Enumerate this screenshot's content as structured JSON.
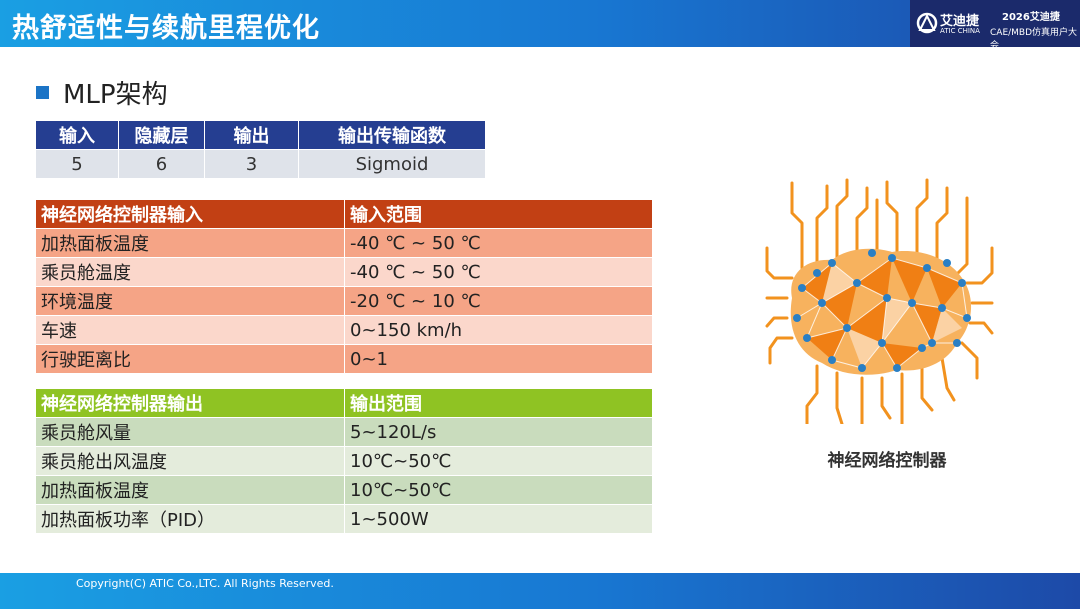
{
  "header": {
    "title": "热舒适性与续航里程优化",
    "logo_cn": "艾迪捷",
    "logo_en": "ATIC CHINA",
    "conf_line1": "2026艾迪捷",
    "conf_line2": "CAE/MBD仿真用户大会"
  },
  "section": {
    "title": "MLP架构"
  },
  "mlp_table": {
    "headers": [
      "输入",
      "隐藏层",
      "输出",
      "输出传输函数"
    ],
    "values": [
      "5",
      "6",
      "3",
      "Sigmoid"
    ]
  },
  "input_table": {
    "headers": [
      "神经网络控制器输入",
      "输入范围"
    ],
    "rows": [
      [
        "加热面板温度",
        "-40 ℃ ~ 50 ℃"
      ],
      [
        "乘员舱温度",
        "-40 ℃ ~ 50 ℃"
      ],
      [
        "环境温度",
        "-20 ℃ ~ 10 ℃"
      ],
      [
        "车速",
        "0~150 km/h"
      ],
      [
        "行驶距离比",
        "0~1"
      ]
    ]
  },
  "output_table": {
    "headers": [
      "神经网络控制器输出",
      "输出范围"
    ],
    "rows": [
      [
        "乘员舱风量",
        "5~120L/s"
      ],
      [
        "乘员舱出风温度",
        "10℃~50℃"
      ],
      [
        "加热面板温度",
        "10℃~50℃"
      ],
      [
        "加热面板功率（PID）",
        "1~500W"
      ]
    ]
  },
  "image": {
    "caption": "神经网络控制器",
    "icon": "neural-network-brain-icon"
  },
  "footer": {
    "copyright": "Copyright(C) ATIC Co.,LTC. All Rights Reserved."
  },
  "colors": {
    "header_blue": "#1877d2",
    "mlp_header": "#253e91",
    "input_header": "#c24014",
    "output_header": "#8fc323",
    "brain_orange": "#f2921e",
    "node_blue": "#2a7fc4"
  }
}
